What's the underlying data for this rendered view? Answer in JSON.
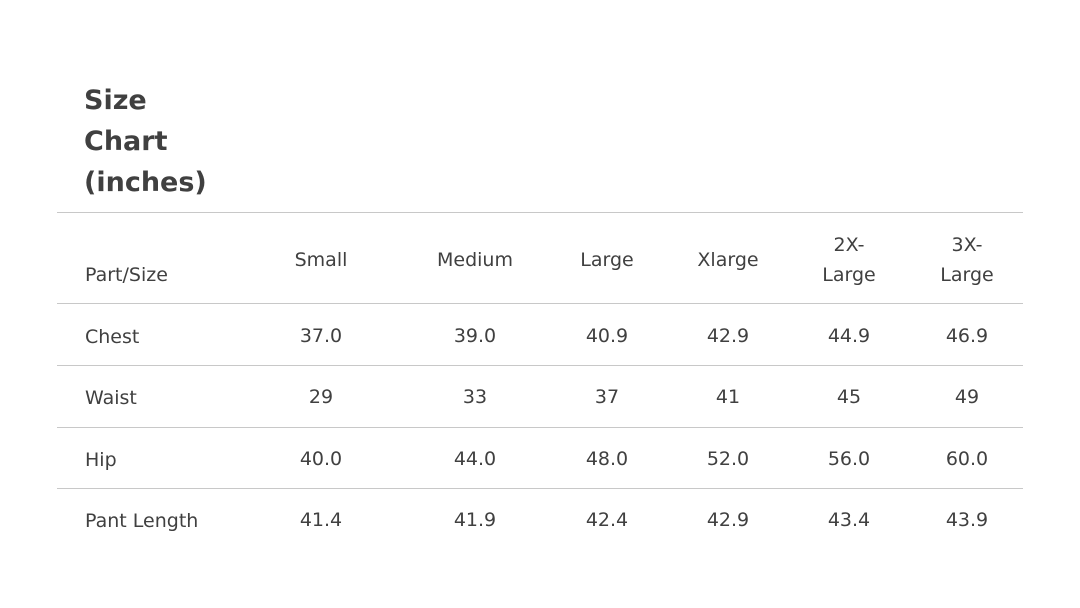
{
  "title": "Size Chart (inches)",
  "table": {
    "header": [
      "Part/Size",
      "Small",
      "Medium",
      "Large",
      "Xlarge",
      "2X-Large",
      "3X-Large"
    ],
    "rows": [
      [
        "Chest",
        "37.0",
        "39.0",
        "40.9",
        "42.9",
        "44.9",
        "46.9"
      ],
      [
        "Waist",
        "29",
        "33",
        "37",
        "41",
        "45",
        "49"
      ],
      [
        "Hip",
        "40.0",
        "44.0",
        "48.0",
        "52.0",
        "56.0",
        "60.0"
      ],
      [
        "Pant Length",
        "41.4",
        "41.9",
        "42.4",
        "42.9",
        "43.4",
        "43.9"
      ]
    ]
  }
}
